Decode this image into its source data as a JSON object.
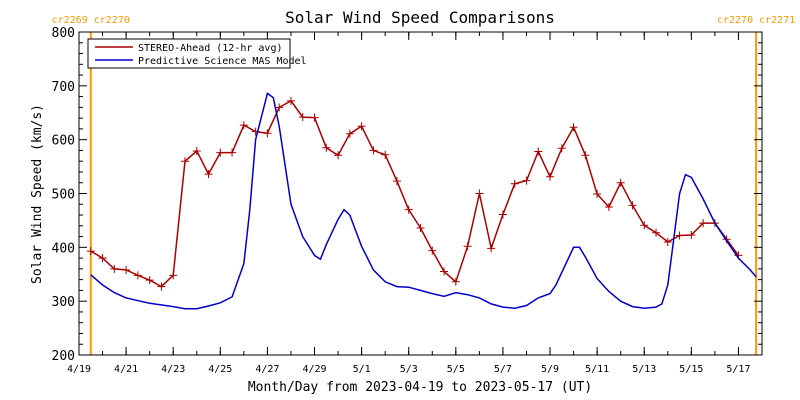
{
  "chart_data": {
    "type": "line",
    "title": "Solar Wind Speed Comparisons",
    "xlabel": "Month/Day from 2023-04-19 to 2023-05-17 (UT)",
    "ylabel": "Solar Wind Speed (km/s)",
    "xlim": [
      "2023-04-19",
      "2023-05-18"
    ],
    "ylim": [
      200,
      800
    ],
    "y_ticks": [
      200,
      300,
      400,
      500,
      600,
      700,
      800
    ],
    "x_ticks": [
      {
        "date": "2023-04-19",
        "label": "4/19"
      },
      {
        "date": "2023-04-21",
        "label": "4/21"
      },
      {
        "date": "2023-04-23",
        "label": "4/23"
      },
      {
        "date": "2023-04-25",
        "label": "4/25"
      },
      {
        "date": "2023-04-27",
        "label": "4/27"
      },
      {
        "date": "2023-04-29",
        "label": "4/29"
      },
      {
        "date": "2023-05-01",
        "label": "5/1"
      },
      {
        "date": "2023-05-03",
        "label": "5/3"
      },
      {
        "date": "2023-05-05",
        "label": "5/5"
      },
      {
        "date": "2023-05-07",
        "label": "5/7"
      },
      {
        "date": "2023-05-09",
        "label": "5/9"
      },
      {
        "date": "2023-05-11",
        "label": "5/11"
      },
      {
        "date": "2023-05-13",
        "label": "5/13"
      },
      {
        "date": "2023-05-15",
        "label": "5/15"
      },
      {
        "date": "2023-05-17",
        "label": "5/17"
      }
    ],
    "grid": false,
    "legend_position": "top-left",
    "carrington_markers": [
      {
        "date": "2023-04-19 12:00",
        "left_label": "cr2269",
        "right_label": "cr2270",
        "color": "#ff9900"
      },
      {
        "date": "2023-05-17 18:00",
        "left_label": "cr2270",
        "right_label": "cr2271",
        "color": "#ff9900"
      }
    ],
    "series": [
      {
        "name": "STEREO-Ahead (12-hr avg)",
        "color": "#aa0000",
        "marker": "plus",
        "points": [
          [
            "2023-04-19 12:00",
            393
          ],
          [
            "2023-04-20 00:00",
            380
          ],
          [
            "2023-04-20 12:00",
            360
          ],
          [
            "2023-04-21 00:00",
            358
          ],
          [
            "2023-04-21 12:00",
            348
          ],
          [
            "2023-04-22 00:00",
            339
          ],
          [
            "2023-04-22 12:00",
            327
          ],
          [
            "2023-04-23 00:00",
            348
          ],
          [
            "2023-04-23 12:00",
            560
          ],
          [
            "2023-04-24 00:00",
            579
          ],
          [
            "2023-04-24 12:00",
            536
          ],
          [
            "2023-04-25 00:00",
            576
          ],
          [
            "2023-04-25 12:00",
            576
          ],
          [
            "2023-04-26 00:00",
            627
          ],
          [
            "2023-04-26 12:00",
            615
          ],
          [
            "2023-04-27 00:00",
            612
          ],
          [
            "2023-04-27 12:00",
            660
          ],
          [
            "2023-04-28 00:00",
            672
          ],
          [
            "2023-04-28 12:00",
            642
          ],
          [
            "2023-04-29 00:00",
            641
          ],
          [
            "2023-04-29 12:00",
            585
          ],
          [
            "2023-04-30 00:00",
            571
          ],
          [
            "2023-04-30 12:00",
            611
          ],
          [
            "2023-05-01 00:00",
            625
          ],
          [
            "2023-05-01 12:00",
            580
          ],
          [
            "2023-05-02 00:00",
            572
          ],
          [
            "2023-05-02 12:00",
            523
          ],
          [
            "2023-05-03 00:00",
            470
          ],
          [
            "2023-05-03 12:00",
            436
          ],
          [
            "2023-05-04 00:00",
            394
          ],
          [
            "2023-05-04 12:00",
            355
          ],
          [
            "2023-05-05 00:00",
            336
          ],
          [
            "2023-05-05 12:00",
            402
          ],
          [
            "2023-05-06 00:00",
            500
          ],
          [
            "2023-05-06 12:00",
            398
          ],
          [
            "2023-05-07 00:00",
            461
          ],
          [
            "2023-05-07 12:00",
            518
          ],
          [
            "2023-05-08 00:00",
            524
          ],
          [
            "2023-05-08 12:00",
            578
          ],
          [
            "2023-05-09 00:00",
            531
          ],
          [
            "2023-05-09 12:00",
            584
          ],
          [
            "2023-05-10 00:00",
            623
          ],
          [
            "2023-05-10 12:00",
            571
          ],
          [
            "2023-05-11 00:00",
            499
          ],
          [
            "2023-05-11 12:00",
            475
          ],
          [
            "2023-05-12 00:00",
            520
          ],
          [
            "2023-05-12 12:00",
            478
          ],
          [
            "2023-05-13 00:00",
            441
          ],
          [
            "2023-05-13 12:00",
            427
          ],
          [
            "2023-05-14 00:00",
            410
          ],
          [
            "2023-05-14 12:00",
            422
          ],
          [
            "2023-05-15 00:00",
            423
          ],
          [
            "2023-05-15 12:00",
            445
          ],
          [
            "2023-05-16 00:00",
            445
          ],
          [
            "2023-05-16 12:00",
            415
          ],
          [
            "2023-05-17 00:00",
            385
          ]
        ]
      },
      {
        "name": "Predictive Science MAS Model",
        "color": "#0000cc",
        "marker": "none",
        "points": [
          [
            "2023-04-19 12:00",
            349
          ],
          [
            "2023-04-20 00:00",
            330
          ],
          [
            "2023-04-20 12:00",
            316
          ],
          [
            "2023-04-21 00:00",
            306
          ],
          [
            "2023-04-22 00:00",
            296
          ],
          [
            "2023-04-23 00:00",
            290
          ],
          [
            "2023-04-23 12:00",
            286
          ],
          [
            "2023-04-24 00:00",
            286
          ],
          [
            "2023-04-24 12:00",
            291
          ],
          [
            "2023-04-25 00:00",
            297
          ],
          [
            "2023-04-25 12:00",
            308
          ],
          [
            "2023-04-26 00:00",
            370
          ],
          [
            "2023-04-26 06:00",
            470
          ],
          [
            "2023-04-26 12:00",
            600
          ],
          [
            "2023-04-27 00:00",
            686
          ],
          [
            "2023-04-27 06:00",
            678
          ],
          [
            "2023-04-27 12:00",
            625
          ],
          [
            "2023-04-28 00:00",
            480
          ],
          [
            "2023-04-28 12:00",
            420
          ],
          [
            "2023-04-29 00:00",
            385
          ],
          [
            "2023-04-29 06:00",
            378
          ],
          [
            "2023-04-29 12:00",
            405
          ],
          [
            "2023-04-30 00:00",
            452
          ],
          [
            "2023-04-30 06:00",
            470
          ],
          [
            "2023-04-30 12:00",
            460
          ],
          [
            "2023-05-01 00:00",
            402
          ],
          [
            "2023-05-01 12:00",
            358
          ],
          [
            "2023-05-02 00:00",
            336
          ],
          [
            "2023-05-02 12:00",
            327
          ],
          [
            "2023-05-03 00:00",
            326
          ],
          [
            "2023-05-03 12:00",
            320
          ],
          [
            "2023-05-04 00:00",
            314
          ],
          [
            "2023-05-04 12:00",
            309
          ],
          [
            "2023-05-05 00:00",
            316
          ],
          [
            "2023-05-05 12:00",
            312
          ],
          [
            "2023-05-06 00:00",
            306
          ],
          [
            "2023-05-06 12:00",
            295
          ],
          [
            "2023-05-07 00:00",
            289
          ],
          [
            "2023-05-07 12:00",
            287
          ],
          [
            "2023-05-08 00:00",
            292
          ],
          [
            "2023-05-08 12:00",
            306
          ],
          [
            "2023-05-09 00:00",
            314
          ],
          [
            "2023-05-09 06:00",
            330
          ],
          [
            "2023-05-10 00:00",
            400
          ],
          [
            "2023-05-10 06:00",
            400
          ],
          [
            "2023-05-10 12:00",
            382
          ],
          [
            "2023-05-11 00:00",
            342
          ],
          [
            "2023-05-11 12:00",
            318
          ],
          [
            "2023-05-12 00:00",
            300
          ],
          [
            "2023-05-12 12:00",
            290
          ],
          [
            "2023-05-13 00:00",
            287
          ],
          [
            "2023-05-13 12:00",
            289
          ],
          [
            "2023-05-13 18:00",
            295
          ],
          [
            "2023-05-14 00:00",
            330
          ],
          [
            "2023-05-14 06:00",
            415
          ],
          [
            "2023-05-14 12:00",
            500
          ],
          [
            "2023-05-14 18:00",
            535
          ],
          [
            "2023-05-15 00:00",
            530
          ],
          [
            "2023-05-15 12:00",
            490
          ],
          [
            "2023-05-16 00:00",
            445
          ],
          [
            "2023-05-16 12:00",
            412
          ],
          [
            "2023-05-17 00:00",
            380
          ],
          [
            "2023-05-17 12:00",
            358
          ],
          [
            "2023-05-17 18:00",
            345
          ]
        ]
      }
    ]
  }
}
